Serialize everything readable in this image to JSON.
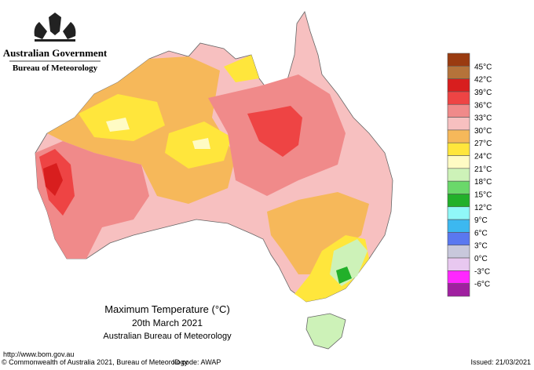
{
  "header": {
    "government": "Australian Government",
    "bureau": "Bureau of Meteorology"
  },
  "legend": {
    "labels": [
      "45°C",
      "42°C",
      "39°C",
      "36°C",
      "33°C",
      "30°C",
      "27°C",
      "24°C",
      "21°C",
      "18°C",
      "15°C",
      "12°C",
      "9°C",
      "6°C",
      "3°C",
      "0°C",
      "-3°C",
      "-6°C"
    ],
    "colors": [
      "#9a3b10",
      "#b5733a",
      "#d81e1e",
      "#ee4444",
      "#f08a8a",
      "#f7c0c0",
      "#f6b85a",
      "#ffe63c",
      "#fffbc4",
      "#cdf2b8",
      "#6ad86a",
      "#22b02a",
      "#90f8f8",
      "#3cb8f0",
      "#5a78f0",
      "#c8c8dc",
      "#e8c8f0",
      "#ff28ff",
      "#a020a0"
    ]
  },
  "caption": {
    "title": "Maximum Temperature (°C)",
    "date": "20th March 2021",
    "source": "Australian Bureau of Meteorology"
  },
  "footer": {
    "url": "http://www.bom.gov.au",
    "copyright": "© Commonwealth of Australia 2021, Bureau of Meteorology",
    "id_code": "ID code: AWAP",
    "issued": "Issued: 21/03/2021"
  }
}
